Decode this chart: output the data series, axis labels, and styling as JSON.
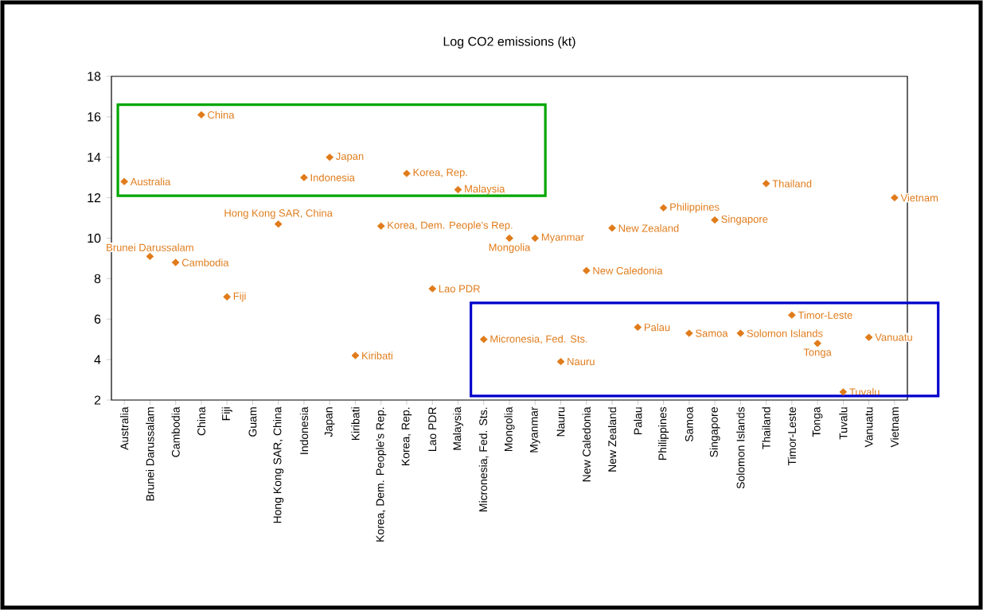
{
  "chart_data": {
    "type": "scatter",
    "title": "Log CO2 emissions (kt)",
    "categories": [
      "Australia",
      "Brunei Darussalam",
      "Cambodia",
      "China",
      "Fiji",
      "Guam",
      "Hong Kong SAR, China",
      "Indonesia",
      "Japan",
      "Kiribati",
      "Korea, Dem. People's Rep.",
      "Korea, Rep.",
      "Lao PDR",
      "Malaysia",
      "Micronesia, Fed. Sts.",
      "Mongolia",
      "Myanmar",
      "Nauru",
      "New Caledonia",
      "New Zealand",
      "Palau",
      "Philippines",
      "Samoa",
      "Singapore",
      "Solomon Islands",
      "Thailand",
      "Timor-Leste",
      "Tonga",
      "Tuvalu",
      "Vanuatu",
      "Vietnam"
    ],
    "values": [
      12.8,
      9.1,
      8.8,
      16.1,
      7.1,
      null,
      10.7,
      13.0,
      14.0,
      4.2,
      10.6,
      13.2,
      7.5,
      12.4,
      5.0,
      10.0,
      10.0,
      3.9,
      8.4,
      10.5,
      5.6,
      11.5,
      5.3,
      10.9,
      5.3,
      12.7,
      6.2,
      4.8,
      2.4,
      5.1,
      12.0
    ],
    "color": "#e07b1a",
    "marker": "diamond",
    "grid": false,
    "ylim": [
      2,
      18
    ],
    "yticks": [
      2,
      4,
      6,
      8,
      10,
      12,
      14,
      16,
      18
    ],
    "annotations": [
      {
        "text": "Australia",
        "x": "Australia",
        "y": 12.8
      },
      {
        "text": "Brunei Darussalam",
        "x": "Brunei Darussalam",
        "y": 9.1
      },
      {
        "text": "Cambodia",
        "x": "Cambodia",
        "y": 8.8
      },
      {
        "text": "China",
        "x": "China",
        "y": 16.1
      },
      {
        "text": "Fiji",
        "x": "Fiji",
        "y": 7.1
      },
      {
        "text": "Hong Kong SAR, China",
        "x": "Hong Kong SAR, China",
        "y": 10.7
      },
      {
        "text": "Indonesia",
        "x": "Indonesia",
        "y": 13.0
      },
      {
        "text": "Japan",
        "x": "Japan",
        "y": 14.0
      },
      {
        "text": "Kiribati",
        "x": "Kiribati",
        "y": 4.2
      },
      {
        "text": "Korea, Dem. People's Rep.",
        "x": "Korea, Dem. People's Rep.",
        "y": 10.6
      },
      {
        "text": "Korea, Rep.",
        "x": "Korea, Rep.",
        "y": 13.2
      },
      {
        "text": "Lao PDR",
        "x": "Lao PDR",
        "y": 7.5
      },
      {
        "text": "Malaysia",
        "x": "Malaysia",
        "y": 12.4
      },
      {
        "text": "Micronesia, Fed. Sts.",
        "x": "Micronesia, Fed. Sts.",
        "y": 5.0
      },
      {
        "text": "Mongolia",
        "x": "Mongolia",
        "y": 10.0
      },
      {
        "text": "Myanmar",
        "x": "Myanmar",
        "y": 10.0
      },
      {
        "text": "Nauru",
        "x": "Nauru",
        "y": 3.9
      },
      {
        "text": "New Caledonia",
        "x": "New Caledonia",
        "y": 8.4
      },
      {
        "text": "New Zealand",
        "x": "New Zealand",
        "y": 10.5
      },
      {
        "text": "Palau",
        "x": "Palau",
        "y": 5.6
      },
      {
        "text": "Philippines",
        "x": "Philippines",
        "y": 11.5
      },
      {
        "text": "Samoa",
        "x": "Samoa",
        "y": 5.3
      },
      {
        "text": "Singapore",
        "x": "Singapore",
        "y": 10.9
      },
      {
        "text": "Solomon Islands",
        "x": "Solomon Islands",
        "y": 5.3
      },
      {
        "text": "Thailand",
        "x": "Thailand",
        "y": 12.7
      },
      {
        "text": "Timor-Leste",
        "x": "Timor-Leste",
        "y": 6.2
      },
      {
        "text": "Tonga",
        "x": "Tonga",
        "y": 4.8
      },
      {
        "text": "Tuvalu",
        "x": "Tuvalu",
        "y": 2.4
      },
      {
        "text": "Vanuatu",
        "x": "Vanuatu",
        "y": 5.1
      },
      {
        "text": "Vietnam",
        "x": "Vietnam",
        "y": 12.0
      }
    ]
  }
}
